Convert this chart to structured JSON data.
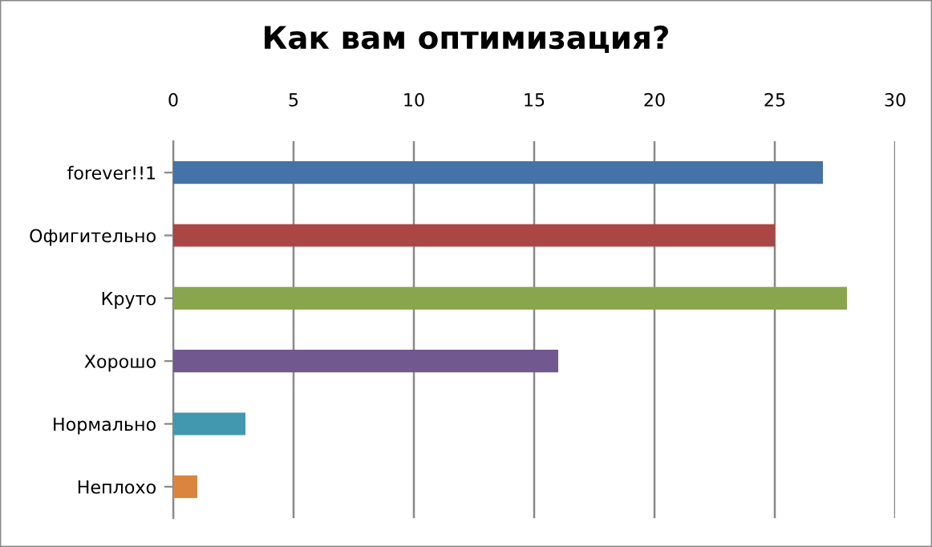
{
  "chart_data": {
    "type": "bar",
    "orientation": "horizontal",
    "title": "Как вам оптимизация?",
    "categories": [
      "forever!!1",
      "Офигительно",
      "Круто",
      "Хорошо",
      "Нормально",
      "Неплохо"
    ],
    "values": [
      27,
      25,
      28,
      16,
      3,
      1
    ],
    "colors": [
      "#4572a7",
      "#aa4643",
      "#89a54e",
      "#71588f",
      "#4198af",
      "#db843d"
    ],
    "xlim": [
      0,
      30
    ],
    "xticks": [
      0,
      5,
      10,
      15,
      20,
      25,
      30
    ],
    "grid": "x",
    "legend": false
  }
}
